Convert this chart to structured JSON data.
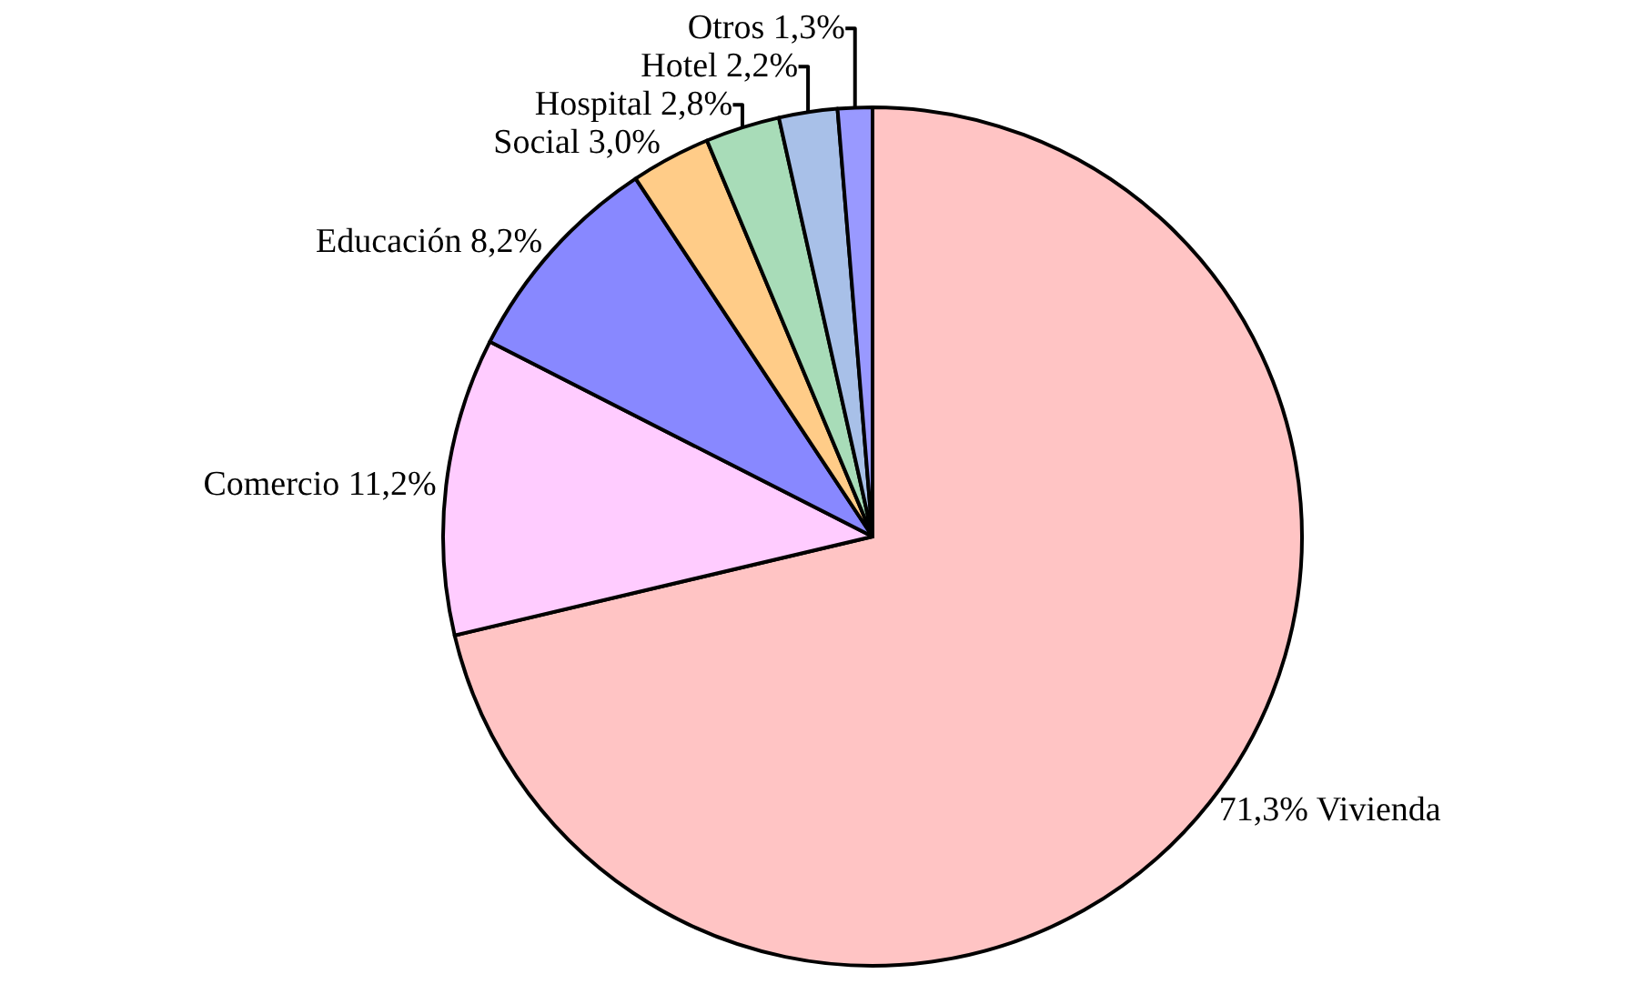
{
  "chart_data": {
    "type": "pie",
    "categories": [
      "Vivienda",
      "Comercio",
      "Educación",
      "Social",
      "Hospital",
      "Hotel",
      "Otros"
    ],
    "values": [
      71.3,
      11.2,
      8.2,
      3.0,
      2.8,
      2.2,
      1.3
    ],
    "value_labels": [
      "71,3%",
      "11,2%",
      "8,2%",
      "3,0%",
      "2,8%",
      "2,2%",
      "1,3%"
    ],
    "colors": [
      "#ffc4c4",
      "#ffccff",
      "#8888ff",
      "#ffcc88",
      "#a8dcb8",
      "#a8c0e8",
      "#9999ff"
    ]
  }
}
